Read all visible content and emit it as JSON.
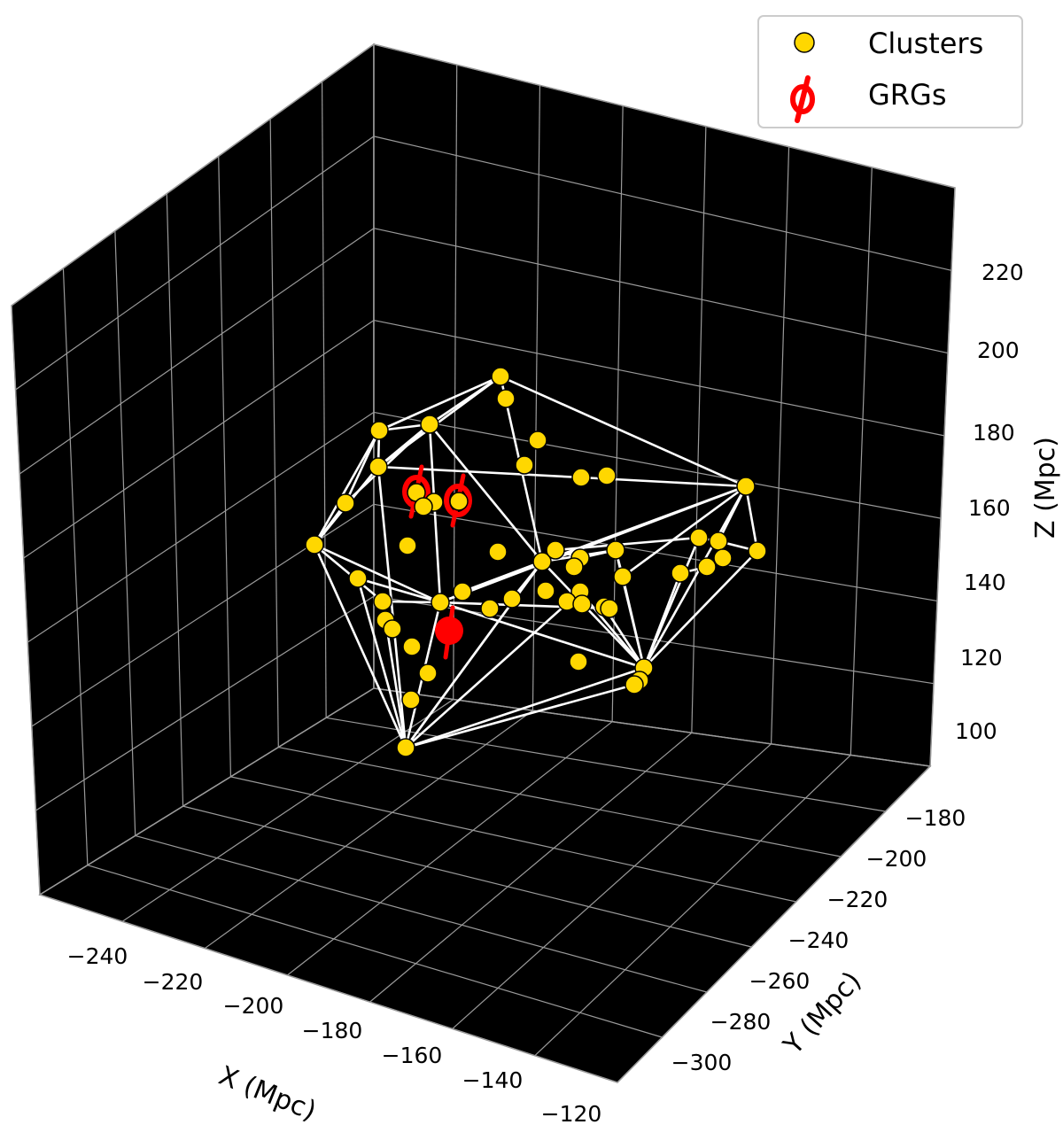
{
  "chart_data": {
    "type": "scatter",
    "projection": "3d",
    "xlabel": "X (Mpc)",
    "ylabel": "Y (Mpc)",
    "zlabel": "Z (Mpc)",
    "x_ticks": [
      -240,
      -220,
      -200,
      -180,
      -160,
      -140,
      -120
    ],
    "y_ticks": [
      -180,
      -200,
      -220,
      -240,
      -260,
      -280,
      -300
    ],
    "z_ticks": [
      100,
      120,
      140,
      160,
      180,
      200,
      220
    ],
    "pane_color": "#000000",
    "grid": true,
    "legend_position": "top-right",
    "legend": [
      {
        "label": "Clusters",
        "marker": "circle",
        "color": "#FFD700"
      },
      {
        "label": "GRGs",
        "marker": "phi",
        "color": "#FF0000"
      }
    ],
    "series": [
      {
        "name": "Clusters",
        "color": "#FFD700",
        "edgecolor": "#000000",
        "note": "positions read in screen space of the projected 3D view",
        "points": [
          [
            565,
            425
          ],
          [
            571,
            450
          ],
          [
            485,
            479
          ],
          [
            428,
            486
          ],
          [
            607,
            497
          ],
          [
            427,
            527
          ],
          [
            592,
            525
          ],
          [
            656,
            539
          ],
          [
            685,
            537
          ],
          [
            842,
            549
          ],
          [
            470,
            556
          ],
          [
            490,
            567
          ],
          [
            478,
            572
          ],
          [
            518,
            566
          ],
          [
            390,
            568
          ],
          [
            355,
            615
          ],
          [
            460,
            616
          ],
          [
            562,
            623
          ],
          [
            612,
            634
          ],
          [
            627,
            621
          ],
          [
            655,
            630
          ],
          [
            648,
            640
          ],
          [
            695,
            621
          ],
          [
            789,
            607
          ],
          [
            811,
            611
          ],
          [
            855,
            622
          ],
          [
            816,
            630
          ],
          [
            798,
            640
          ],
          [
            768,
            647
          ],
          [
            703,
            651
          ],
          [
            404,
            653
          ],
          [
            522,
            668
          ],
          [
            578,
            676
          ],
          [
            553,
            687
          ],
          [
            616,
            667
          ],
          [
            655,
            668
          ],
          [
            640,
            679
          ],
          [
            657,
            682
          ],
          [
            682,
            685
          ],
          [
            688,
            687
          ],
          [
            432,
            679
          ],
          [
            497,
            680
          ],
          [
            435,
            700
          ],
          [
            443,
            710
          ],
          [
            465,
            730
          ],
          [
            653,
            747
          ],
          [
            727,
            754
          ],
          [
            722,
            768
          ],
          [
            716,
            773
          ],
          [
            483,
            760
          ],
          [
            464,
            790
          ],
          [
            458,
            844
          ]
        ]
      },
      {
        "name": "GRGs",
        "color": "#FF0000",
        "points": [
          [
            470,
            555
          ],
          [
            517,
            565
          ],
          [
            507,
            712
          ]
        ]
      }
    ],
    "edges": [
      [
        [
          565,
          425
        ],
        [
          485,
          479
        ]
      ],
      [
        [
          565,
          425
        ],
        [
          428,
          486
        ]
      ],
      [
        [
          565,
          425
        ],
        [
          427,
          527
        ]
      ],
      [
        [
          565,
          425
        ],
        [
          842,
          549
        ]
      ],
      [
        [
          565,
          425
        ],
        [
          612,
          634
        ]
      ],
      [
        [
          485,
          479
        ],
        [
          428,
          486
        ]
      ],
      [
        [
          485,
          479
        ],
        [
          427,
          527
        ]
      ],
      [
        [
          485,
          479
        ],
        [
          390,
          568
        ]
      ],
      [
        [
          485,
          479
        ],
        [
          612,
          634
        ]
      ],
      [
        [
          485,
          479
        ],
        [
          497,
          680
        ]
      ],
      [
        [
          428,
          486
        ],
        [
          427,
          527
        ]
      ],
      [
        [
          428,
          486
        ],
        [
          390,
          568
        ]
      ],
      [
        [
          428,
          486
        ],
        [
          355,
          615
        ]
      ],
      [
        [
          427,
          527
        ],
        [
          656,
          539
        ]
      ],
      [
        [
          427,
          527
        ],
        [
          355,
          615
        ]
      ],
      [
        [
          427,
          527
        ],
        [
          458,
          844
        ]
      ],
      [
        [
          656,
          539
        ],
        [
          842,
          549
        ]
      ],
      [
        [
          842,
          549
        ],
        [
          612,
          634
        ]
      ],
      [
        [
          842,
          549
        ],
        [
          855,
          622
        ]
      ],
      [
        [
          842,
          549
        ],
        [
          727,
          754
        ]
      ],
      [
        [
          842,
          549
        ],
        [
          703,
          651
        ]
      ],
      [
        [
          842,
          549
        ],
        [
          497,
          680
        ]
      ],
      [
        [
          842,
          549
        ],
        [
          811,
          611
        ]
      ],
      [
        [
          390,
          568
        ],
        [
          355,
          615
        ]
      ],
      [
        [
          355,
          615
        ],
        [
          458,
          844
        ]
      ],
      [
        [
          355,
          615
        ],
        [
          497,
          680
        ]
      ],
      [
        [
          355,
          615
        ],
        [
          432,
          679
        ]
      ],
      [
        [
          855,
          622
        ],
        [
          727,
          754
        ]
      ],
      [
        [
          855,
          622
        ],
        [
          811,
          611
        ]
      ],
      [
        [
          811,
          611
        ],
        [
          789,
          607
        ]
      ],
      [
        [
          789,
          607
        ],
        [
          727,
          754
        ]
      ],
      [
        [
          789,
          607
        ],
        [
          627,
          621
        ]
      ],
      [
        [
          768,
          647
        ],
        [
          727,
          754
        ]
      ],
      [
        [
          768,
          647
        ],
        [
          798,
          640
        ]
      ],
      [
        [
          612,
          634
        ],
        [
          497,
          680
        ]
      ],
      [
        [
          612,
          634
        ],
        [
          458,
          844
        ]
      ],
      [
        [
          612,
          634
        ],
        [
          727,
          754
        ]
      ],
      [
        [
          612,
          634
        ],
        [
          578,
          676
        ]
      ],
      [
        [
          612,
          634
        ],
        [
          695,
          621
        ]
      ],
      [
        [
          695,
          621
        ],
        [
          727,
          754
        ]
      ],
      [
        [
          695,
          621
        ],
        [
          703,
          651
        ]
      ],
      [
        [
          703,
          651
        ],
        [
          727,
          754
        ]
      ],
      [
        [
          682,
          685
        ],
        [
          727,
          754
        ]
      ],
      [
        [
          497,
          680
        ],
        [
          458,
          844
        ]
      ],
      [
        [
          497,
          680
        ],
        [
          432,
          679
        ]
      ],
      [
        [
          497,
          680
        ],
        [
          688,
          687
        ]
      ],
      [
        [
          497,
          680
        ],
        [
          727,
          754
        ]
      ],
      [
        [
          432,
          679
        ],
        [
          458,
          844
        ]
      ],
      [
        [
          458,
          844
        ],
        [
          727,
          754
        ]
      ],
      [
        [
          458,
          844
        ],
        [
          716,
          773
        ]
      ],
      [
        [
          458,
          844
        ],
        [
          655,
          668
        ]
      ],
      [
        [
          458,
          844
        ],
        [
          612,
          634
        ]
      ],
      [
        [
          404,
          653
        ],
        [
          458,
          844
        ]
      ],
      [
        [
          404,
          653
        ],
        [
          497,
          680
        ]
      ],
      [
        [
          612,
          634
        ],
        [
          522,
          668
        ]
      ],
      [
        [
          716,
          773
        ],
        [
          727,
          754
        ]
      ],
      [
        [
          655,
          668
        ],
        [
          727,
          754
        ]
      ],
      [
        [
          627,
          621
        ],
        [
          655,
          630
        ]
      ],
      [
        [
          655,
          630
        ],
        [
          695,
          621
        ]
      ]
    ]
  }
}
